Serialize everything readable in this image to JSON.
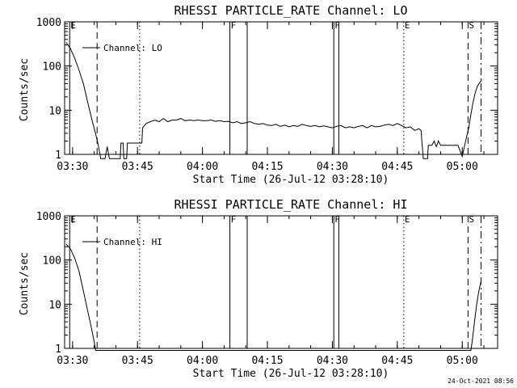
{
  "chart_data": [
    {
      "type": "line",
      "title": "RHESSI PARTICLE_RATE Channel: LO",
      "xlabel": "Start Time (26-Jul-12 03:28:10)",
      "ylabel": "Counts/sec",
      "y_scale": "log",
      "ylim": [
        1,
        1000
      ],
      "xlim": [
        "03:28:10",
        "05:08:10"
      ],
      "x_ticks": [
        "03:30",
        "03:45",
        "04:00",
        "04:15",
        "04:30",
        "04:45",
        "05:00"
      ],
      "y_ticks": [
        "1",
        "10",
        "100",
        "1000"
      ],
      "legend": {
        "placement": "top-left",
        "entries": [
          "Channel: LO"
        ]
      },
      "series": [
        {
          "name": "Channel: LO",
          "points": [
            [
              "03:28:30",
              340
            ],
            [
              "03:29:30",
              250
            ],
            [
              "03:30:30",
              150
            ],
            [
              "03:31:30",
              80
            ],
            [
              "03:32:30",
              40
            ],
            [
              "03:33:30",
              15
            ],
            [
              "03:34:30",
              6
            ],
            [
              "03:35:30",
              2.5
            ],
            [
              "03:36:00",
              1.5
            ],
            [
              "03:36:30",
              0.8
            ],
            [
              "03:37:30",
              0.8
            ],
            [
              "03:38:00",
              1.5
            ],
            [
              "03:38:30",
              0.8
            ],
            [
              "03:41:00",
              0.8
            ],
            [
              "03:41:10",
              1.8
            ],
            [
              "03:41:40",
              1.8
            ],
            [
              "03:41:50",
              0.8
            ],
            [
              "03:42:30",
              0.8
            ],
            [
              "03:42:40",
              1.8
            ],
            [
              "03:46:00",
              1.8
            ],
            [
              "03:46:10",
              4
            ],
            [
              "03:47:00",
              5
            ],
            [
              "03:48:00",
              5.5
            ],
            [
              "03:49:00",
              6
            ],
            [
              "03:50:00",
              5.5
            ],
            [
              "03:51:00",
              6.5
            ],
            [
              "03:52:00",
              5.5
            ],
            [
              "03:53:00",
              6
            ],
            [
              "03:54:00",
              6
            ],
            [
              "03:55:00",
              6.5
            ],
            [
              "03:56:00",
              5.8
            ],
            [
              "03:57:00",
              6
            ],
            [
              "03:58:00",
              5.8
            ],
            [
              "03:59:00",
              6
            ],
            [
              "04:00:00",
              5.8
            ],
            [
              "04:01:00",
              5.8
            ],
            [
              "04:02:00",
              6
            ],
            [
              "04:03:00",
              5.6
            ],
            [
              "04:04:00",
              5.8
            ],
            [
              "04:05:00",
              5.5
            ],
            [
              "04:06:00",
              5.6
            ],
            [
              "04:07:00",
              5.2
            ],
            [
              "04:08:00",
              5.5
            ],
            [
              "04:09:00",
              5
            ],
            [
              "04:10:00",
              5.2
            ],
            [
              "04:11:00",
              5.5
            ],
            [
              "04:12:00",
              5
            ],
            [
              "04:13:00",
              4.8
            ],
            [
              "04:14:00",
              5
            ],
            [
              "04:15:00",
              4.6
            ],
            [
              "04:16:00",
              4.5
            ],
            [
              "04:17:00",
              4.8
            ],
            [
              "04:18:00",
              4.3
            ],
            [
              "04:19:00",
              4.6
            ],
            [
              "04:20:00",
              4.2
            ],
            [
              "04:21:00",
              4.5
            ],
            [
              "04:22:00",
              4.3
            ],
            [
              "04:23:00",
              4.8
            ],
            [
              "04:24:00",
              4.5
            ],
            [
              "04:25:00",
              4.3
            ],
            [
              "04:26:00",
              4.5
            ],
            [
              "04:27:00",
              4.2
            ],
            [
              "04:28:00",
              4.4
            ],
            [
              "04:29:00",
              4.2
            ],
            [
              "04:30:00",
              4
            ],
            [
              "04:31:00",
              4.3
            ],
            [
              "04:32:00",
              4.5
            ],
            [
              "04:33:00",
              4
            ],
            [
              "04:34:00",
              4.2
            ],
            [
              "04:35:00",
              4
            ],
            [
              "04:36:00",
              4.3
            ],
            [
              "04:37:00",
              4.5
            ],
            [
              "04:38:00",
              4
            ],
            [
              "04:39:00",
              4.5
            ],
            [
              "04:40:00",
              4.2
            ],
            [
              "04:41:00",
              4.3
            ],
            [
              "04:42:00",
              4.6
            ],
            [
              "04:43:00",
              4.8
            ],
            [
              "04:44:00",
              4.5
            ],
            [
              "04:45:00",
              5
            ],
            [
              "04:46:00",
              4.5
            ],
            [
              "04:47:00",
              4
            ],
            [
              "04:48:00",
              4.2
            ],
            [
              "04:49:00",
              3.5
            ],
            [
              "04:50:00",
              3.8
            ],
            [
              "04:50:30",
              3.5
            ],
            [
              "04:50:40",
              2
            ],
            [
              "04:51:00",
              0.8
            ],
            [
              "04:52:00",
              0.8
            ],
            [
              "04:52:10",
              1.6
            ],
            [
              "04:53:00",
              1.6
            ],
            [
              "04:53:30",
              2
            ],
            [
              "04:54:00",
              1.5
            ],
            [
              "04:54:30",
              2
            ],
            [
              "04:55:00",
              1.6
            ],
            [
              "04:56:00",
              1.6
            ],
            [
              "04:58:00",
              1.6
            ],
            [
              "04:59:00",
              1.6
            ],
            [
              "05:00:00",
              0.9
            ],
            [
              "05:00:30",
              1.5
            ],
            [
              "05:01:00",
              2.5
            ],
            [
              "05:01:30",
              4
            ],
            [
              "05:02:00",
              8
            ],
            [
              "05:02:30",
              15
            ],
            [
              "05:03:00",
              25
            ],
            [
              "05:03:30",
              35
            ],
            [
              "05:04:00",
              42
            ],
            [
              "05:04:30",
              48
            ]
          ]
        }
      ]
    },
    {
      "type": "line",
      "title": "RHESSI PARTICLE_RATE Channel: HI",
      "xlabel": "Start Time (26-Jul-12 03:28:10)",
      "ylabel": "Counts/sec",
      "y_scale": "log",
      "ylim": [
        1,
        1000
      ],
      "xlim": [
        "03:28:10",
        "05:08:10"
      ],
      "x_ticks": [
        "03:30",
        "03:45",
        "04:00",
        "04:15",
        "04:30",
        "04:45",
        "05:00"
      ],
      "y_ticks": [
        "1",
        "10",
        "100",
        "1000"
      ],
      "legend": {
        "placement": "top-left",
        "entries": [
          "Channel: HI"
        ]
      },
      "series": [
        {
          "name": "Channel: HI",
          "points": [
            [
              "03:28:30",
              230
            ],
            [
              "03:29:30",
              180
            ],
            [
              "03:30:30",
              110
            ],
            [
              "03:31:30",
              55
            ],
            [
              "03:32:30",
              20
            ],
            [
              "03:33:30",
              7
            ],
            [
              "03:34:30",
              2.5
            ],
            [
              "03:35:00",
              1.4
            ],
            [
              "03:35:20",
              0.9
            ],
            [
              "05:02:00",
              0.9
            ],
            [
              "05:02:20",
              1.5
            ],
            [
              "05:02:50",
              4
            ],
            [
              "05:03:20",
              10
            ],
            [
              "05:03:50",
              20
            ],
            [
              "05:04:20",
              33
            ]
          ]
        }
      ]
    }
  ],
  "markers": [
    {
      "time": "03:29:20",
      "style": "solid",
      "label": "E"
    },
    {
      "time": "03:35:40",
      "style": "dashed",
      "label": ""
    },
    {
      "time": "03:45:30",
      "style": "dotted",
      "label": ""
    },
    {
      "time": "04:06:20",
      "style": "solid",
      "label": "F"
    },
    {
      "time": "04:10:20",
      "style": "solid",
      "label": ""
    },
    {
      "time": "04:30:20",
      "style": "solid",
      "label": "F"
    },
    {
      "time": "04:31:30",
      "style": "solid",
      "label": ""
    },
    {
      "time": "04:46:30",
      "style": "dotted",
      "label": "E"
    },
    {
      "time": "05:01:20",
      "style": "dashed",
      "label": "S"
    },
    {
      "time": "05:04:20",
      "style": "dashdot",
      "label": ""
    }
  ],
  "footer": {
    "date": "24-Oct-2021 08:56"
  }
}
